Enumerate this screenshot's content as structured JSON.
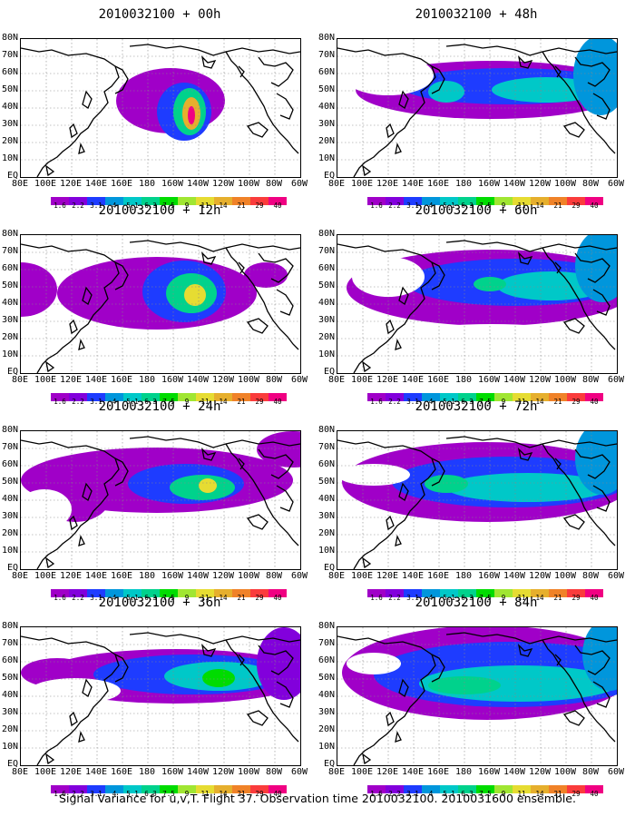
{
  "caption": "Signal Variance for u,v,T. Flight 37. Observation time 2010032100. 2010031600 ensemble.",
  "lon_labels": [
    "80E",
    "100E",
    "120E",
    "140E",
    "160E",
    "180",
    "160W",
    "140W",
    "120W",
    "100W",
    "80W",
    "60W"
  ],
  "lat_labels": [
    "80N",
    "70N",
    "60N",
    "50N",
    "40N",
    "30N",
    "20N",
    "10N",
    "EQ"
  ],
  "colorbar_labels": [
    "1.6",
    "2.2",
    "3.1",
    "4",
    "5.1",
    "6.3",
    "7.5",
    "9",
    "11",
    "14",
    "21",
    "29",
    "40"
  ],
  "colorbar_colors": [
    "#a000c8",
    "#8200dc",
    "#1e3cff",
    "#0096dc",
    "#00c8c8",
    "#00d28c",
    "#00dc00",
    "#a0e632",
    "#e6dc32",
    "#e6af2d",
    "#f08228",
    "#fa3c3c",
    "#f00082"
  ],
  "panels": [
    {
      "title": "2010032100 + 00h",
      "hours": 0
    },
    {
      "title": "2010032100 + 48h",
      "hours": 48
    },
    {
      "title": "2010032100 + 12h",
      "hours": 12
    },
    {
      "title": "2010032100 + 60h",
      "hours": 60
    },
    {
      "title": "2010032100 + 24h",
      "hours": 24
    },
    {
      "title": "2010032100 + 72h",
      "hours": 72
    },
    {
      "title": "2010032100 + 36h",
      "hours": 36
    },
    {
      "title": "2010032100 + 84h",
      "hours": 84
    }
  ]
}
